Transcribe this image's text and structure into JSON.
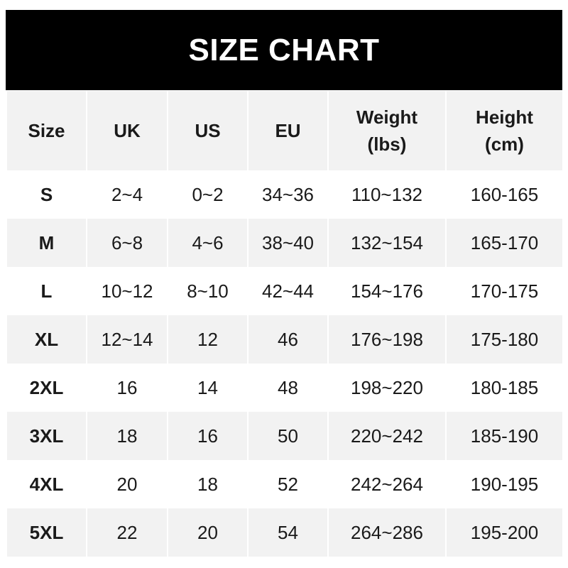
{
  "title": "SIZE CHART",
  "headers": [
    "Size",
    "UK",
    "US",
    "EU",
    "Weight\n(lbs)",
    "Height\n(cm)"
  ],
  "rows": [
    [
      "S",
      "2~4",
      "0~2",
      "34~36",
      "110~132",
      "160-165"
    ],
    [
      "M",
      "6~8",
      "4~6",
      "38~40",
      "132~154",
      "165-170"
    ],
    [
      "L",
      "10~12",
      "8~10",
      "42~44",
      "154~176",
      "170-175"
    ],
    [
      "XL",
      "12~14",
      "12",
      "46",
      "176~198",
      "175-180"
    ],
    [
      "2XL",
      "16",
      "14",
      "48",
      "198~220",
      "180-185"
    ],
    [
      "3XL",
      "18",
      "16",
      "50",
      "220~242",
      "185-190"
    ],
    [
      "4XL",
      "20",
      "18",
      "52",
      "242~264",
      "190-195"
    ],
    [
      "5XL",
      "22",
      "20",
      "54",
      "264~286",
      "195-200"
    ]
  ],
  "colors": {
    "banner": "#000000",
    "shaded_row": "#f2f2f2"
  }
}
